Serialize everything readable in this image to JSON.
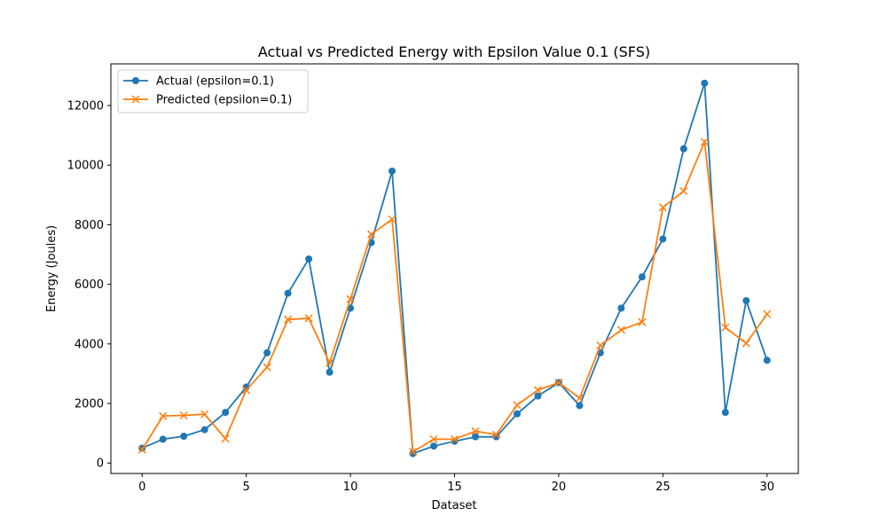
{
  "chart_data": {
    "type": "line",
    "title": "Actual vs Predicted Energy with Epsilon Value 0.1 (SFS)",
    "xlabel": "Dataset",
    "ylabel": "Energy (Joules)",
    "xlim": [
      -1.5,
      31.5
    ],
    "ylim": [
      -350,
      13400
    ],
    "x_ticks": [
      0,
      5,
      10,
      15,
      20,
      25,
      30
    ],
    "y_ticks": [
      0,
      2000,
      4000,
      6000,
      8000,
      10000,
      12000
    ],
    "grid": false,
    "legend_position": "upper-left",
    "x": [
      0,
      1,
      2,
      3,
      4,
      5,
      6,
      7,
      8,
      9,
      10,
      11,
      12,
      13,
      14,
      15,
      16,
      17,
      18,
      19,
      20,
      21,
      22,
      23,
      24,
      25,
      26,
      27,
      28,
      29,
      30
    ],
    "series": [
      {
        "name": "Actual (epsilon=0.1)",
        "color": "#1f77b4",
        "marker": "circle",
        "values": [
          500,
          800,
          900,
          1120,
          1700,
          2550,
          3700,
          5700,
          6850,
          3050,
          5200,
          7400,
          9800,
          320,
          570,
          730,
          880,
          880,
          1650,
          2250,
          2700,
          1930,
          3700,
          5200,
          6250,
          7520,
          10550,
          12750,
          1700,
          5450,
          3450
        ]
      },
      {
        "name": "Predicted (epsilon=0.1)",
        "color": "#ff7f0e",
        "marker": "x",
        "values": [
          450,
          1580,
          1600,
          1640,
          820,
          2450,
          3220,
          4820,
          4860,
          3360,
          5500,
          7680,
          8180,
          380,
          800,
          800,
          1070,
          950,
          1950,
          2450,
          2700,
          2180,
          3950,
          4470,
          4730,
          8580,
          9130,
          10780,
          4550,
          4020,
          5000
        ]
      }
    ]
  }
}
